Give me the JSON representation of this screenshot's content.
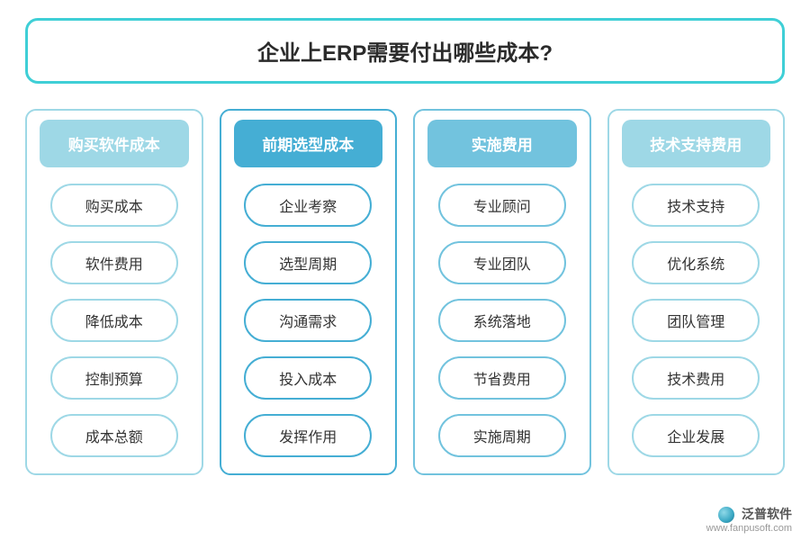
{
  "type": "infographic",
  "title": "企业上ERP需要付出哪些成本?",
  "title_border_color": "#3fcfd6",
  "background_color": "#ffffff",
  "title_fontsize": 24,
  "title_color": "#2b2b2b",
  "column_border_radius": 12,
  "item_border_radius": 24,
  "header_fontsize": 17,
  "item_fontsize": 16,
  "columns": [
    {
      "header": "购买软件成本",
      "header_bg": "#9ed8e6",
      "border_color": "#9ed8e6",
      "item_border_color": "#9ed8e6",
      "items": [
        "购买成本",
        "软件费用",
        "降低成本",
        "控制预算",
        "成本总额"
      ]
    },
    {
      "header": "前期选型成本",
      "header_bg": "#45aed4",
      "border_color": "#45aed4",
      "item_border_color": "#45aed4",
      "items": [
        "企业考察",
        "选型周期",
        "沟通需求",
        "投入成本",
        "发挥作用"
      ]
    },
    {
      "header": "实施费用",
      "header_bg": "#72c3de",
      "border_color": "#72c3de",
      "item_border_color": "#72c3de",
      "items": [
        "专业顾问",
        "专业团队",
        "系统落地",
        "节省费用",
        "实施周期"
      ]
    },
    {
      "header": "技术支持费用",
      "header_bg": "#9ed8e6",
      "border_color": "#9ed8e6",
      "item_border_color": "#9ed8e6",
      "items": [
        "技术支持",
        "优化系统",
        "团队管理",
        "技术费用",
        "企业发展"
      ]
    }
  ],
  "watermark": {
    "brand": "泛普软件",
    "url": "www.fanpusoft.com"
  }
}
